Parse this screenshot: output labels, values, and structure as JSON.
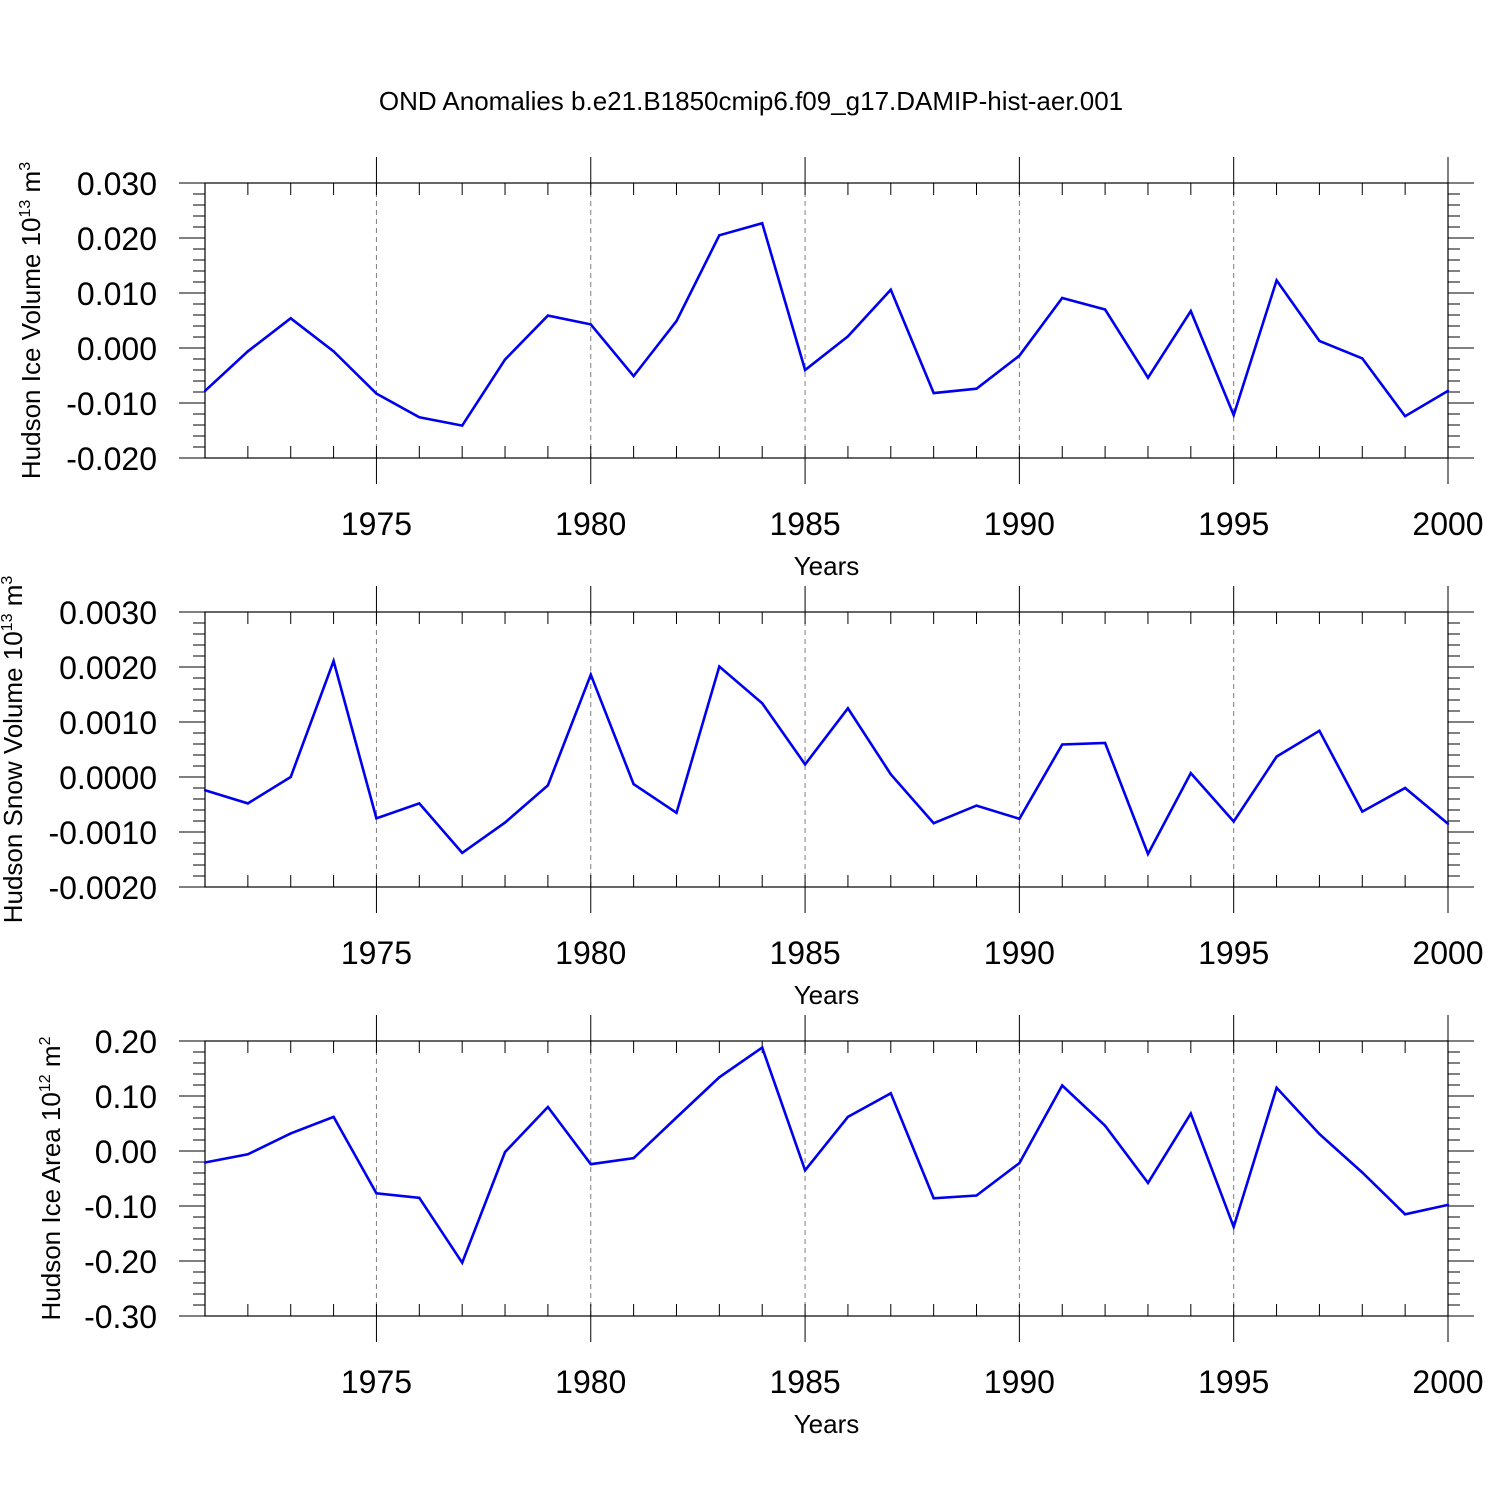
{
  "title": "OND Anomalies b.e21.B1850cmip6.f09_g17.DAMIP-hist-aer.001",
  "colors": {
    "series": "#0000ee",
    "frame": "#000000",
    "grid": "#7f7f7f"
  },
  "chart_data": [
    {
      "type": "line",
      "ylabel": {
        "base": "Hudson Ice Volume 10",
        "exp": "13",
        "unit": " m",
        "unit_exp": "3"
      },
      "xlabel": "Years",
      "xlim": [
        1971,
        2000
      ],
      "ylim": [
        -0.02,
        0.03
      ],
      "xticks": [
        1975,
        1980,
        1985,
        1990,
        1995,
        2000
      ],
      "yticks": [
        -0.02,
        -0.01,
        0.0,
        0.01,
        0.02,
        0.03
      ],
      "ytick_labels": [
        "-0.020",
        "-0.010",
        "0.000",
        "0.010",
        "0.020",
        "0.030"
      ],
      "grid": "vertical dashed at major x ticks",
      "x": [
        1971,
        1972,
        1973,
        1974,
        1975,
        1976,
        1977,
        1978,
        1979,
        1980,
        1981,
        1982,
        1983,
        1984,
        1985,
        1986,
        1987,
        1988,
        1989,
        1990,
        1991,
        1992,
        1993,
        1994,
        1995,
        1996,
        1997,
        1998,
        1999,
        2000
      ],
      "values": [
        -0.0078,
        -0.0006,
        0.0054,
        -0.0006,
        -0.0083,
        -0.0126,
        -0.0141,
        -0.0021,
        0.0059,
        0.0043,
        -0.0051,
        0.0049,
        0.0205,
        0.0227,
        -0.004,
        0.0021,
        0.0106,
        -0.0082,
        -0.0074,
        -0.0014,
        0.0091,
        0.007,
        -0.0054,
        0.0067,
        -0.0122,
        0.0123,
        0.0013,
        -0.0019,
        -0.0124,
        -0.0078
      ]
    },
    {
      "type": "line",
      "ylabel": {
        "base": "Hudson Snow Volume 10",
        "exp": "13",
        "unit": " m",
        "unit_exp": "3"
      },
      "xlabel": "Years",
      "xlim": [
        1971,
        2000
      ],
      "ylim": [
        -0.002,
        0.003
      ],
      "xticks": [
        1975,
        1980,
        1985,
        1990,
        1995,
        2000
      ],
      "yticks": [
        -0.002,
        -0.001,
        0.0,
        0.001,
        0.002,
        0.003
      ],
      "ytick_labels": [
        "-0.0020",
        "-0.0010",
        "0.0000",
        "0.0010",
        "0.0020",
        "0.0030"
      ],
      "grid": "vertical dashed at major x ticks",
      "x": [
        1971,
        1972,
        1973,
        1974,
        1975,
        1976,
        1977,
        1978,
        1979,
        1980,
        1981,
        1982,
        1983,
        1984,
        1985,
        1986,
        1987,
        1988,
        1989,
        1990,
        1991,
        1992,
        1993,
        1994,
        1995,
        1996,
        1997,
        1998,
        1999,
        2000
      ],
      "values": [
        -0.00024,
        -0.00048,
        0.0,
        0.00211,
        -0.00075,
        -0.00048,
        -0.00138,
        -0.00083,
        -0.00015,
        0.00186,
        -0.00013,
        -0.00065,
        0.00201,
        0.00134,
        0.00023,
        0.00125,
        5e-05,
        -0.00084,
        -0.00052,
        -0.00076,
        0.00059,
        0.00062,
        -0.0014,
        7e-05,
        -0.00081,
        0.00037,
        0.00084,
        -0.00063,
        -0.0002,
        -0.00085
      ]
    },
    {
      "type": "line",
      "ylabel": {
        "base": "Hudson Ice Area 10",
        "exp": "12",
        "unit": " m",
        "unit_exp": "2"
      },
      "xlabel": "Years",
      "xlim": [
        1971,
        2000
      ],
      "ylim": [
        -0.3,
        0.2
      ],
      "xticks": [
        1975,
        1980,
        1985,
        1990,
        1995,
        2000
      ],
      "yticks": [
        -0.3,
        -0.2,
        -0.1,
        0.0,
        0.1,
        0.2
      ],
      "ytick_labels": [
        "-0.30",
        "-0.20",
        "-0.10",
        "0.00",
        "0.10",
        "0.20"
      ],
      "grid": "vertical dashed at major x ticks",
      "x": [
        1971,
        1972,
        1973,
        1974,
        1975,
        1976,
        1977,
        1978,
        1979,
        1980,
        1981,
        1982,
        1983,
        1984,
        1985,
        1986,
        1987,
        1988,
        1989,
        1990,
        1991,
        1992,
        1993,
        1994,
        1995,
        1996,
        1997,
        1998,
        1999,
        2000
      ],
      "values": [
        -0.021,
        -0.006,
        0.032,
        0.062,
        -0.077,
        -0.085,
        -0.203,
        -0.002,
        0.08,
        -0.024,
        -0.013,
        0.061,
        0.134,
        0.188,
        -0.035,
        0.062,
        0.105,
        -0.086,
        -0.081,
        -0.022,
        0.119,
        0.046,
        -0.058,
        0.068,
        -0.138,
        0.115,
        0.031,
        -0.039,
        -0.115,
        -0.098
      ]
    }
  ]
}
